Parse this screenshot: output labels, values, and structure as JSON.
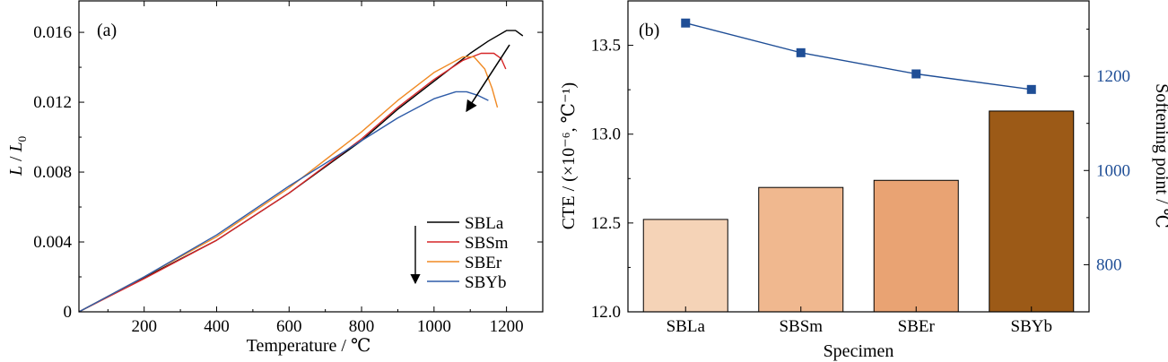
{
  "chart_data": [
    {
      "panel": "(a)",
      "type": "line",
      "xlabel": "Temperature / ℃",
      "ylabel_main": "L",
      "ylabel_sep": " / ",
      "ylabel_denom": "L",
      "ylabel_sub": "0",
      "xlim": [
        20,
        1300
      ],
      "ylim": [
        0,
        0.0178
      ],
      "xticks": [
        200,
        400,
        600,
        800,
        1000,
        1200
      ],
      "yticks": [
        0,
        0.004,
        0.008,
        0.012,
        0.016
      ],
      "ytick_labels": [
        "0",
        "0.004",
        "0.008",
        "0.012",
        "0.016"
      ],
      "legend_position": "bottom-right",
      "series": [
        {
          "name": "SBLa",
          "color": "#000000",
          "x": [
            20,
            200,
            400,
            600,
            800,
            900,
            1000,
            1100,
            1150,
            1200,
            1225,
            1245
          ],
          "y": [
            0,
            0.00195,
            0.0041,
            0.0068,
            0.0098,
            0.0116,
            0.0132,
            0.0148,
            0.0155,
            0.0161,
            0.0161,
            0.0158
          ]
        },
        {
          "name": "SBSm",
          "color": "#d62728",
          "x": [
            20,
            200,
            400,
            600,
            800,
            900,
            1000,
            1080,
            1130,
            1165,
            1185,
            1198
          ],
          "y": [
            0,
            0.0019,
            0.0041,
            0.0068,
            0.0099,
            0.0117,
            0.0133,
            0.0144,
            0.0148,
            0.0148,
            0.0145,
            0.0139
          ]
        },
        {
          "name": "SBEr",
          "color": "#f08a24",
          "x": [
            20,
            200,
            400,
            600,
            800,
            900,
            1000,
            1080,
            1110,
            1140,
            1160,
            1175
          ],
          "y": [
            0,
            0.002,
            0.0043,
            0.0071,
            0.0103,
            0.0121,
            0.0137,
            0.0146,
            0.0146,
            0.0139,
            0.0128,
            0.0117
          ]
        },
        {
          "name": "SBYb",
          "color": "#2f5ca8",
          "x": [
            20,
            200,
            400,
            600,
            700,
            800,
            900,
            1000,
            1060,
            1090,
            1120,
            1150
          ],
          "y": [
            0,
            0.002,
            0.0044,
            0.0072,
            0.0085,
            0.0098,
            0.0111,
            0.0122,
            0.0126,
            0.0126,
            0.0124,
            0.0121
          ]
        }
      ]
    },
    {
      "panel": "(b)",
      "type": "bar",
      "xlabel": "Specimen",
      "ylabel_left": "CTE / (×10⁻⁶, ℃⁻¹)",
      "ylabel_right": "Softening point / ℃",
      "categories": [
        "SBLa",
        "SBSm",
        "SBEr",
        "SBYb"
      ],
      "ylim_left": [
        12.0,
        13.75
      ],
      "yticks_left": [
        12.0,
        12.5,
        13.0,
        13.5
      ],
      "ytick_labels_left": [
        "12.0",
        "12.5",
        "13.0",
        "13.5"
      ],
      "ylim_right": [
        700,
        1360
      ],
      "yticks_right": [
        800,
        1000,
        1200
      ],
      "bars": {
        "name": "CTE",
        "values": [
          12.52,
          12.7,
          12.74,
          13.13
        ],
        "colors": [
          "#f5d3b7",
          "#f0b88f",
          "#e9a373",
          "#9c5a17"
        ]
      },
      "line": {
        "name": "Softening point",
        "color": "#1f4e96",
        "values": [
          1313,
          1250,
          1205,
          1172
        ]
      }
    }
  ]
}
